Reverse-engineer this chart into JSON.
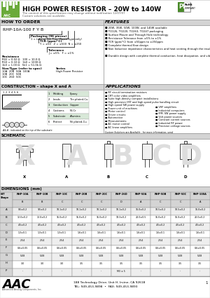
{
  "title": "HIGH POWER RESISTOR – 20W to 140W",
  "subtitle1": "The content of this specification may change without notification 12/07/07",
  "subtitle2": "Custom solutions are available.",
  "bg_color": "#ffffff",
  "address": "188 Technology Drive, Unit H, Irvine, CA 92618",
  "phone": "TEL: 949-453-9898  •  FAX: 949-453-9893",
  "page": "1",
  "how_to_order_title": "HOW TO ORDER",
  "order_code": "RHP-10A-100 F Y B",
  "features_title": "FEATURES",
  "features": [
    "20W, 35W, 50W, 100W, and 140W available",
    "TO126, TO220, TO263, TO247 packaging",
    "Surface Mount and Through Hole technology",
    "Resistance Tolerance from ±5% to ±1%",
    "TCR (ppm/°C) from ±50ppm to ±250ppm",
    "Complete thermal flow design",
    "Non Inductive impedance characteristics and heat venting through the insulated metal tab",
    "Durable design with complete thermal conduction, heat dissipation, and vibration"
  ],
  "applications_title": "APPLICATIONS",
  "applications_left": [
    "RF circuit termination resistors",
    "CRT color video amplifiers",
    "Suite high-density compact installations",
    "High precision CRT and high speed pulse handling circuit",
    "High speed SW power supply",
    "Power unit of machines",
    "Motor control",
    "Driver circuits",
    "Automotive",
    "Measurements",
    "AC motor control",
    "AC linear amplifiers"
  ],
  "applications_right": [
    "VHF amplifiers",
    "Industrial computers",
    "IPM, SW power supply",
    "Volt power sources",
    "Constant current sources",
    "Industrial RF power",
    "Precision voltage sources"
  ],
  "construction_title": "CONSTRUCTION – shape X and A",
  "construction_table": [
    [
      "1",
      "Molding",
      "Epoxy"
    ],
    [
      "2",
      "Leads",
      "Tin plated-Cu"
    ],
    [
      "3",
      "Conduction",
      "Copper"
    ],
    [
      "4",
      "Customs",
      "Ni-Cr"
    ],
    [
      "5",
      "Substrate",
      "Alumina"
    ],
    [
      "6",
      "Protect",
      "Ni plated-Cu"
    ]
  ],
  "schematic_title": "SCHEMATIC",
  "dimensions_title": "DIMENSIONS (mm)",
  "dim_headers": [
    "N/T\nShape",
    "RHP-10A\nB",
    "RHP-10B\nB",
    "RHP-10C\nC",
    "RHP-20B\nC",
    "RHP-20C\nC",
    "RHP-26D\nD",
    "RHP-50A\nA",
    "RHP-50B\nC",
    "RHP-50C\nC",
    "RHP-100A\nA"
  ],
  "dim_rows": [
    [
      "A",
      "9.5±0.2",
      "9.5±0.2",
      "10.1±0.2",
      "10.1±0.2",
      "10.1±0.2",
      "10.1±0.2",
      "16.0±0.2",
      "10.5±0.2",
      "10.5±0.2",
      "16.0±0.2"
    ],
    [
      "B",
      "12.0±0.2",
      "12.0±0.2",
      "15.0±0.2",
      "15.0±0.2",
      "15.0±0.2",
      "19.3±0.2",
      "20.0±0.5",
      "15.0±0.2",
      "15.0±0.2",
      "20.0±0.2"
    ],
    [
      "C",
      "4.5±0.2",
      "4.5±0.2",
      "4.5±0.2",
      "4.5±0.2",
      "4.5±0.2",
      "4.5±0.2",
      "4.5±0.2",
      "4.5±0.2",
      "4.5±0.2",
      "4.5±0.2"
    ],
    [
      "D",
      "1.3±0.1",
      "1.3±0.1",
      "1.3±0.1",
      "1.6±0.1",
      "1.6±0.1",
      "1.6±0.1",
      "1.6±0.1",
      "1.6±0.1",
      "1.6±0.1",
      "1.6±0.1"
    ],
    [
      "E",
      "2.54",
      "2.54",
      "2.54",
      "2.54",
      "2.54",
      "2.54",
      "2.54",
      "2.54",
      "2.54",
      "2.54"
    ],
    [
      "F",
      "0.6±0.05",
      "0.6±0.05",
      "0.6±0.05",
      "0.6±0.05",
      "0.6±0.05",
      "0.6±0.05",
      "0.6±0.05",
      "0.6±0.05",
      "0.6±0.05",
      "0.6±0.05"
    ],
    [
      "G",
      "5.08",
      "5.08",
      "5.08",
      "5.08",
      "5.08",
      "5.08",
      "5.08",
      "5.08",
      "5.08",
      "5.08"
    ],
    [
      "H",
      "3.0",
      "3.0",
      "3.0",
      "3.5",
      "3.5",
      "3.5",
      "3.5",
      "3.5",
      "3.5",
      "3.5"
    ],
    [
      "P",
      "-",
      "-",
      "-",
      "-",
      "-",
      "M3 ± 5",
      "-",
      "-",
      "-",
      "-"
    ]
  ],
  "aac_company": "Advanced Analog Components, Inc.",
  "gray_header": "#d4d4d4",
  "gray_row": "#eeeeee",
  "section_title_bg": "#d4d4d4"
}
